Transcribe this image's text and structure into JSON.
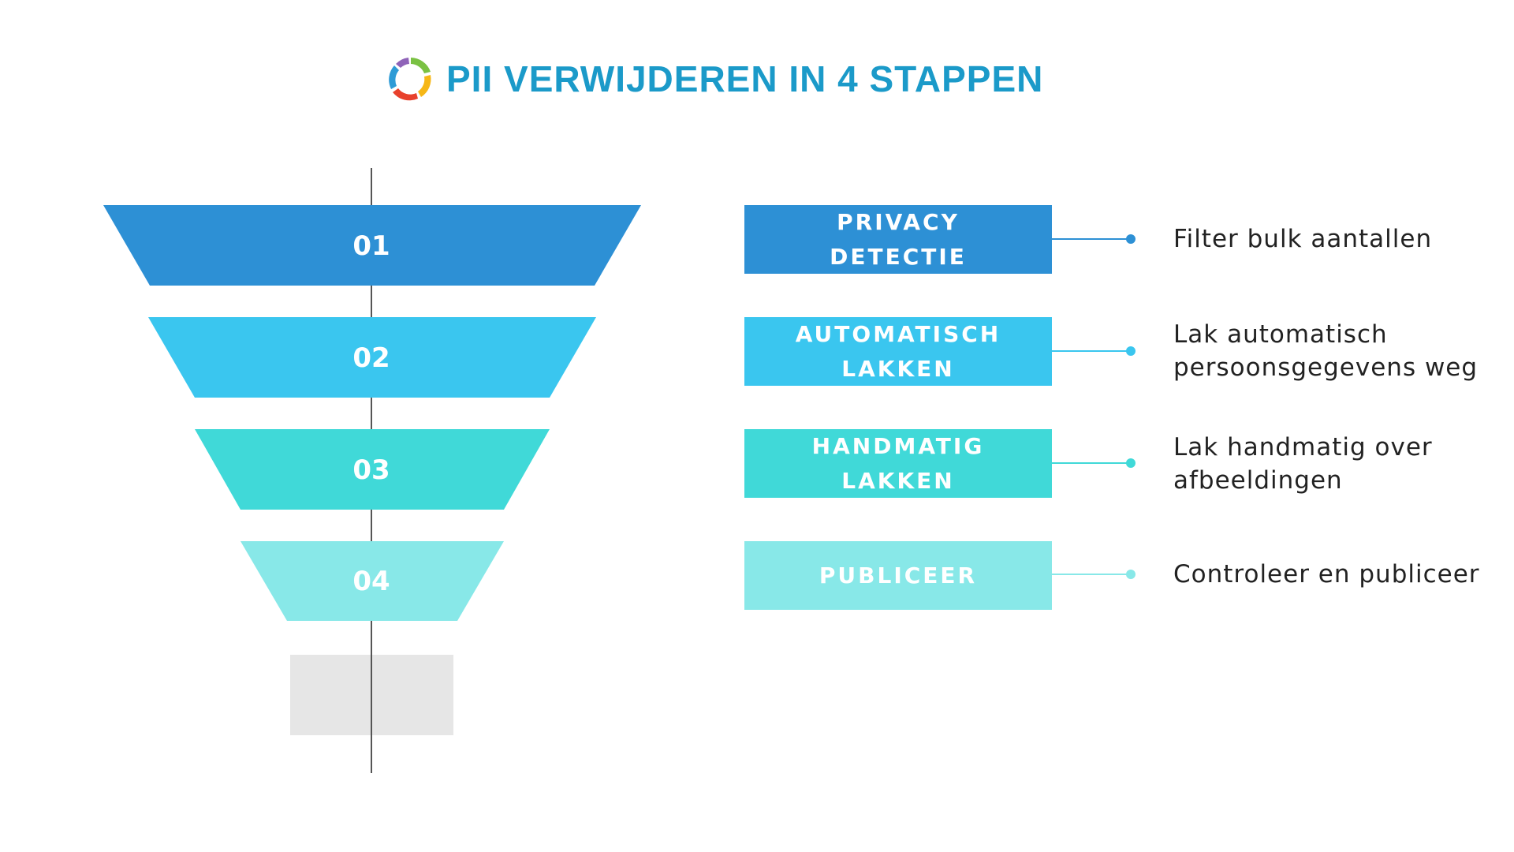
{
  "title": "PII VERWIJDEREN IN 4 STAPPEN",
  "logo_icon": "circular-arrows-logo-icon",
  "colors": {
    "title": "#1b9ac9",
    "step1": "#2d90d5",
    "step2": "#3ac6ef",
    "step3": "#40d9d8",
    "step4": "#88e8e8",
    "base": "#e6e6e6",
    "axis": "#555555",
    "text": "#222222"
  },
  "steps": [
    {
      "number": "01",
      "label_line1": "PRIVACY",
      "label_line2": "DETECTIE",
      "description_line1": "Filter bulk aantallen",
      "description_line2": ""
    },
    {
      "number": "02",
      "label_line1": "AUTOMATISCH",
      "label_line2": "LAKKEN",
      "description_line1": "Lak automatisch",
      "description_line2": "persoonsgegevens weg"
    },
    {
      "number": "03",
      "label_line1": "HANDMATIG",
      "label_line2": "LAKKEN",
      "description_line1": "Lak handmatig over",
      "description_line2": "afbeeldingen"
    },
    {
      "number": "04",
      "label_line1": "PUBLICEER",
      "label_line2": "",
      "description_line1": "Controleer en publiceer",
      "description_line2": ""
    }
  ]
}
